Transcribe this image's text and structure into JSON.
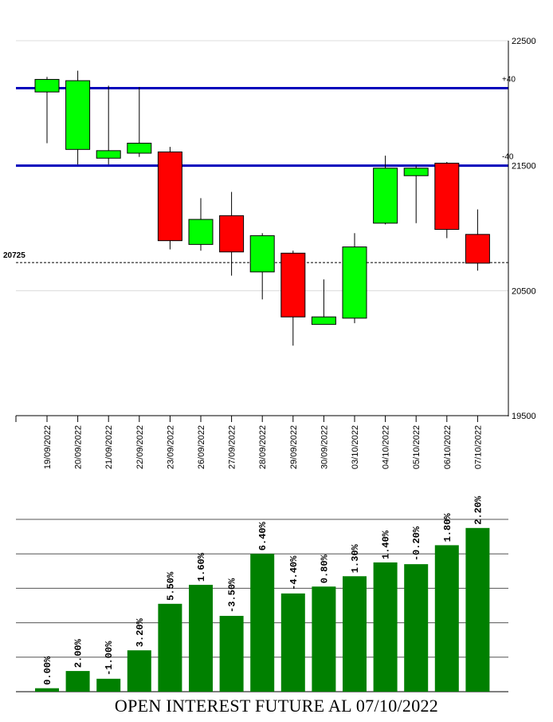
{
  "chart_data": [
    {
      "type": "candlestick",
      "dates": [
        "19/09/2022",
        "20/09/2022",
        "21/09/2022",
        "22/09/2022",
        "23/09/2022",
        "26/09/2022",
        "27/09/2022",
        "28/09/2022",
        "29/09/2022",
        "30/09/2022",
        "03/10/2022",
        "04/10/2022",
        "05/10/2022",
        "06/10/2022",
        "07/10/2022"
      ],
      "open": [
        22090,
        21630,
        21560,
        21600,
        21610,
        20870,
        21100,
        20650,
        20800,
        20230,
        20280,
        21040,
        21420,
        21520,
        20950
      ],
      "close": [
        22190,
        22180,
        21620,
        21680,
        20900,
        21070,
        20810,
        20940,
        20290,
        20290,
        20850,
        21480,
        21480,
        20990,
        20720
      ],
      "high": [
        22210,
        22260,
        22140,
        22130,
        21650,
        21240,
        21290,
        20960,
        20820,
        20590,
        20960,
        21580,
        21500,
        21530,
        21150
      ],
      "low": [
        21680,
        21510,
        21510,
        21570,
        20830,
        20820,
        20620,
        20430,
        20060,
        20230,
        20240,
        21030,
        21040,
        20920,
        20660
      ],
      "ylim": [
        19500,
        22500
      ],
      "yticks": [
        "22500",
        "21500",
        "20500",
        "19500"
      ],
      "levels": [
        {
          "label": "+40",
          "value": 22120,
          "color": "#0000bb"
        },
        {
          "label": "-40",
          "value": 21500,
          "color": "#0000bb"
        }
      ],
      "last_price": {
        "label": "20725",
        "value": 20725
      },
      "up_color": "#00ff00",
      "down_color": "#ff0000"
    },
    {
      "type": "bar",
      "title": "OPEN INTEREST FUTURE AL 07/10/2022",
      "categories": [
        "19/09/2022",
        "20/09/2022",
        "21/09/2022",
        "22/09/2022",
        "23/09/2022",
        "26/09/2022",
        "27/09/2022",
        "28/09/2022",
        "29/09/2022",
        "30/09/2022",
        "03/10/2022",
        "04/10/2022",
        "05/10/2022",
        "06/10/2022",
        "07/10/2022"
      ],
      "values": [
        0.2,
        1.2,
        0.75,
        2.4,
        5.1,
        6.2,
        4.4,
        8.0,
        5.7,
        6.1,
        6.7,
        7.5,
        7.4,
        8.5,
        9.5
      ],
      "labels": [
        "0.00%",
        "2.00%",
        "-1.00%",
        "3.20%",
        "5.50%",
        "1.60%",
        "-3.50%",
        "6.40%",
        "-4.40%",
        "0.80%",
        "1.30%",
        "1.40%",
        "-0.20%",
        "1.80%",
        "2.20%"
      ],
      "ylim": [
        0,
        10
      ],
      "bar_color": "#008000"
    }
  ]
}
